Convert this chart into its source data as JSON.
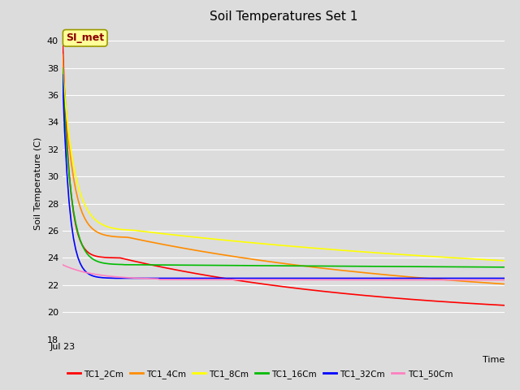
{
  "title": "Soil Temperatures Set 1",
  "xlabel": "Time",
  "ylabel": "Soil Temperature (C)",
  "ylim": [
    18,
    41
  ],
  "yticks": [
    18,
    20,
    22,
    24,
    26,
    28,
    30,
    32,
    34,
    36,
    38,
    40
  ],
  "xlabel_tick": "Jul 23",
  "annotation_text": "SI_met",
  "annotation_color": "#8B0000",
  "annotation_bg": "#FFFF99",
  "fig_bg": "#DCDCDC",
  "plot_bg": "#DCDCDC",
  "series": [
    {
      "label": "TC1_2Cm",
      "color": "#FF0000"
    },
    {
      "label": "TC1_4Cm",
      "color": "#FF8C00"
    },
    {
      "label": "TC1_8Cm",
      "color": "#FFFF00"
    },
    {
      "label": "TC1_16Cm",
      "color": "#00BB00"
    },
    {
      "label": "TC1_32Cm",
      "color": "#0000FF"
    },
    {
      "label": "TC1_50Cm",
      "color": "#FF80C0"
    }
  ],
  "n_points": 200,
  "start_temps": [
    40.5,
    39.0,
    38.0,
    38.0,
    37.5,
    23.5
  ],
  "mid_temps": [
    24.0,
    25.5,
    26.0,
    23.5,
    22.5,
    22.4
  ],
  "end_temps": [
    19.5,
    20.6,
    22.0,
    22.8,
    22.5,
    22.1
  ],
  "decay1_rates": [
    8.0,
    6.5,
    6.0,
    7.0,
    7.5,
    3.0
  ],
  "decay2_rates": [
    1.5,
    1.2,
    0.8,
    0.3,
    0.2,
    0.1
  ],
  "knee_fracs": [
    0.13,
    0.15,
    0.17,
    0.14,
    0.12,
    0.22
  ]
}
